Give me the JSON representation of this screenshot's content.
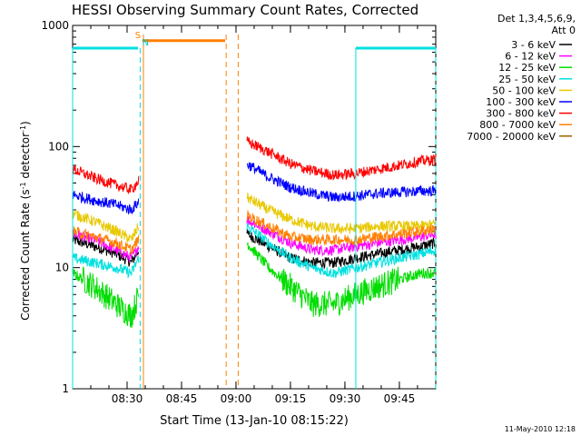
{
  "chart_data": {
    "type": "line",
    "title": "HESSI Observing Summary Count Rates, Corrected",
    "xlabel": "Start Time (13-Jan-10 08:15:22)",
    "ylabel_parts": [
      "Corrected Count Rate (s",
      "-1",
      " detector",
      "-1",
      ")"
    ],
    "y_scale": "log",
    "ylim": [
      1,
      1000
    ],
    "xlim_min": [
      8.25,
      9.917
    ],
    "x_ticks": [
      {
        "label": "08:30",
        "t": 8.5
      },
      {
        "label": "08:45",
        "t": 8.75
      },
      {
        "label": "09:00",
        "t": 9.0
      },
      {
        "label": "09:15",
        "t": 9.25
      },
      {
        "label": "09:30",
        "t": 9.5
      },
      {
        "label": "09:45",
        "t": 9.75
      }
    ],
    "y_ticks": [
      {
        "label": "1",
        "v": 1
      },
      {
        "label": "10",
        "v": 10
      },
      {
        "label": "100",
        "v": 100
      },
      {
        "label": "1000",
        "v": 1000
      }
    ],
    "legend_header": [
      "Det 1,3,4,5,6,9,",
      "Att 0"
    ],
    "legend_position": "right",
    "series": [
      {
        "name": "3 - 6 keV",
        "color": "#000000",
        "segments": [
          [
            [
              8.25,
              17
            ],
            [
              8.35,
              15
            ],
            [
              8.45,
              13
            ],
            [
              8.52,
              11
            ],
            [
              8.553,
              14
            ]
          ],
          [
            [
              9.05,
              19
            ],
            [
              9.15,
              15
            ],
            [
              9.25,
              12
            ],
            [
              9.35,
              11
            ],
            [
              9.45,
              11
            ],
            [
              9.55,
              12
            ],
            [
              9.65,
              13
            ],
            [
              9.75,
              14
            ],
            [
              9.85,
              15
            ],
            [
              9.917,
              16
            ]
          ]
        ]
      },
      {
        "name": "6 - 12 keV",
        "color": "#ff00ff",
        "segments": [
          [
            [
              8.25,
              19
            ],
            [
              8.35,
              17
            ],
            [
              8.45,
              14
            ],
            [
              8.52,
              12
            ],
            [
              8.553,
              15
            ]
          ],
          [
            [
              9.05,
              25
            ],
            [
              9.15,
              20
            ],
            [
              9.25,
              16
            ],
            [
              9.35,
              14
            ],
            [
              9.45,
              14
            ],
            [
              9.55,
              15
            ],
            [
              9.65,
              16
            ],
            [
              9.75,
              17
            ],
            [
              9.85,
              18
            ],
            [
              9.917,
              19
            ]
          ]
        ]
      },
      {
        "name": "12 - 25 keV",
        "color": "#00dd00",
        "segments": [
          [
            [
              8.25,
              9
            ],
            [
              8.35,
              7
            ],
            [
              8.45,
              5
            ],
            [
              8.52,
              4
            ],
            [
              8.553,
              6
            ]
          ],
          [
            [
              9.05,
              16
            ],
            [
              9.15,
              10
            ],
            [
              9.25,
              7
            ],
            [
              9.35,
              5
            ],
            [
              9.45,
              5
            ],
            [
              9.55,
              6
            ],
            [
              9.65,
              7
            ],
            [
              9.75,
              8
            ],
            [
              9.85,
              9
            ],
            [
              9.917,
              9
            ]
          ]
        ]
      },
      {
        "name": "25 - 50 keV",
        "color": "#00e0e0",
        "segments": [
          [
            [
              8.25,
              12
            ],
            [
              8.35,
              11
            ],
            [
              8.45,
              10
            ],
            [
              8.52,
              9
            ],
            [
              8.553,
              12
            ]
          ],
          [
            [
              9.05,
              22
            ],
            [
              9.15,
              16
            ],
            [
              9.25,
              12
            ],
            [
              9.35,
              10
            ],
            [
              9.45,
              9
            ],
            [
              9.55,
              10
            ],
            [
              9.65,
              11
            ],
            [
              9.75,
              12
            ],
            [
              9.85,
              13
            ],
            [
              9.917,
              14
            ]
          ]
        ]
      },
      {
        "name": "50 - 100 keV",
        "color": "#e8c800",
        "segments": [
          [
            [
              8.25,
              28
            ],
            [
              8.35,
              24
            ],
            [
              8.45,
              20
            ],
            [
              8.52,
              17
            ],
            [
              8.553,
              22
            ]
          ],
          [
            [
              9.05,
              38
            ],
            [
              9.15,
              30
            ],
            [
              9.25,
              25
            ],
            [
              9.35,
              22
            ],
            [
              9.45,
              21
            ],
            [
              9.55,
              21
            ],
            [
              9.65,
              22
            ],
            [
              9.75,
              22
            ],
            [
              9.85,
              22
            ],
            [
              9.917,
              23
            ]
          ]
        ]
      },
      {
        "name": "100 - 300 keV",
        "color": "#0000ff",
        "segments": [
          [
            [
              8.25,
              40
            ],
            [
              8.35,
              36
            ],
            [
              8.45,
              33
            ],
            [
              8.52,
              30
            ],
            [
              8.553,
              35
            ]
          ],
          [
            [
              9.05,
              72
            ],
            [
              9.15,
              56
            ],
            [
              9.25,
              46
            ],
            [
              9.35,
              41
            ],
            [
              9.45,
              38
            ],
            [
              9.55,
              39
            ],
            [
              9.65,
              41
            ],
            [
              9.75,
              42
            ],
            [
              9.85,
              43
            ],
            [
              9.917,
              43
            ]
          ]
        ]
      },
      {
        "name": "300 - 800 keV",
        "color": "#ff0000",
        "segments": [
          [
            [
              8.25,
              65
            ],
            [
              8.35,
              55
            ],
            [
              8.45,
              48
            ],
            [
              8.52,
              44
            ],
            [
              8.553,
              52
            ]
          ],
          [
            [
              9.05,
              110
            ],
            [
              9.15,
              90
            ],
            [
              9.25,
              72
            ],
            [
              9.35,
              63
            ],
            [
              9.45,
              58
            ],
            [
              9.55,
              60
            ],
            [
              9.65,
              65
            ],
            [
              9.75,
              70
            ],
            [
              9.85,
              76
            ],
            [
              9.917,
              78
            ]
          ]
        ]
      },
      {
        "name": "800 - 7000 keV",
        "color": "#ff8000",
        "segments": [
          [
            [
              8.25,
              20
            ],
            [
              8.35,
              18
            ],
            [
              8.45,
              16
            ],
            [
              8.52,
              14
            ],
            [
              8.553,
              17
            ]
          ],
          [
            [
              8.57,
              750
            ],
            [
              8.95,
              750
            ]
          ],
          [
            [
              9.05,
              27
            ],
            [
              9.15,
              22
            ],
            [
              9.25,
              18
            ],
            [
              9.35,
              17
            ],
            [
              9.45,
              17
            ],
            [
              9.55,
              17
            ],
            [
              9.65,
              18
            ],
            [
              9.75,
              19
            ],
            [
              9.85,
              20
            ],
            [
              9.917,
              21
            ]
          ]
        ]
      },
      {
        "name": "7000 - 20000 keV",
        "color": "#a06000",
        "segments": []
      }
    ],
    "markers": {
      "cyan_levels": [
        {
          "from": 8.25,
          "to": 8.55,
          "v": 650
        },
        {
          "from": 9.55,
          "to": 9.917,
          "v": 650
        }
      ],
      "cyan_solid": [
        8.25,
        9.55
      ],
      "cyan_dashed": [
        8.56,
        9.917
      ],
      "orange_solid": [
        8.575
      ],
      "orange_dashed": [
        8.955,
        9.01
      ],
      "labels": [
        {
          "text": "S",
          "t": 8.55,
          "color": "#ff8000"
        },
        {
          "text": "N",
          "t": 8.585,
          "color": "#00c0c0"
        }
      ]
    }
  },
  "footer": {
    "timestamp": "11-May-2010 12:18"
  }
}
